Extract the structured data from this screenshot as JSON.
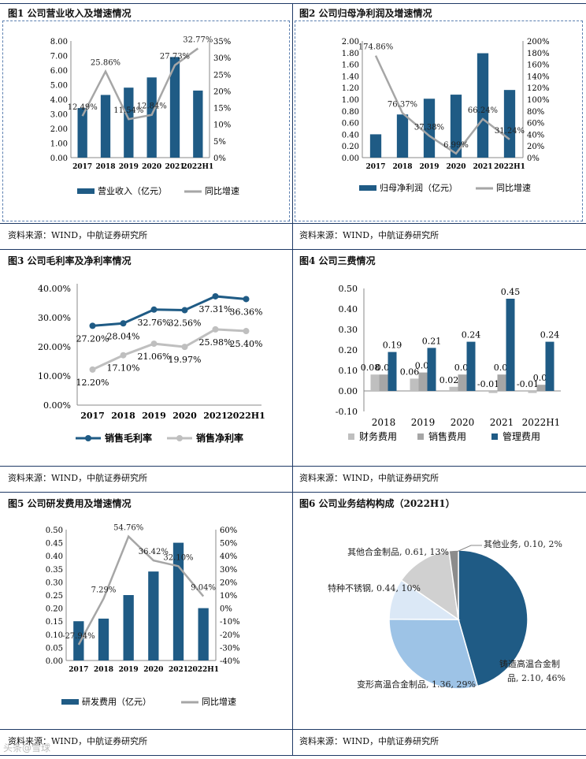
{
  "colors": {
    "primary": "#1f5b85",
    "gray": "#a6a6a6",
    "light_gray": "#bfbfbf",
    "frame": "#1f3a66"
  },
  "source_text": "资料来源：WIND，中航证券研究所",
  "watermark": "头条@雪球",
  "chart_data": [
    {
      "id": "fig1",
      "type": "bar+line",
      "title": "图1  公司营业收入及增速情况",
      "categories": [
        "2017",
        "2018",
        "2019",
        "2020",
        "2021",
        "2022H1"
      ],
      "series": [
        {
          "name": "营业收入（亿元）",
          "type": "bar",
          "axis": "left",
          "values": [
            3.4,
            4.3,
            4.8,
            5.5,
            6.9,
            4.6
          ]
        },
        {
          "name": "同比增速",
          "type": "line",
          "axis": "right",
          "values": [
            12.49,
            25.86,
            11.54,
            12.84,
            27.73,
            32.77
          ]
        }
      ],
      "labels": [
        "12.49%",
        "25.86%",
        "11.54%",
        "12.84%",
        "27.73%",
        "32.77%"
      ],
      "left_ticks": [
        "0.00",
        "1.00",
        "2.00",
        "3.00",
        "4.00",
        "5.00",
        "6.00",
        "7.00",
        "8.00"
      ],
      "right_ticks": [
        "0%",
        "5%",
        "10%",
        "15%",
        "20%",
        "25%",
        "30%",
        "35%"
      ],
      "ylim_left": [
        0,
        8
      ],
      "ylim_right": [
        0,
        35
      ]
    },
    {
      "id": "fig2",
      "type": "bar+line",
      "title": "图2  公司归母净利润及增速情况",
      "categories": [
        "2017",
        "2018",
        "2019",
        "2020",
        "2021",
        "2022H1"
      ],
      "series": [
        {
          "name": "归母净利润（亿元）",
          "type": "bar",
          "axis": "left",
          "values": [
            0.4,
            0.74,
            1.01,
            1.08,
            1.79,
            1.16
          ]
        },
        {
          "name": "同比增速",
          "type": "line",
          "axis": "right",
          "values": [
            174.86,
            76.37,
            37.38,
            6.99,
            66.24,
            31.24
          ]
        }
      ],
      "labels": [
        "174.86%",
        "76.37%",
        "37.38%",
        "6.99%",
        "66.24%",
        "31.24%"
      ],
      "left_ticks": [
        "0.00",
        "0.20",
        "0.40",
        "0.60",
        "0.80",
        "1.00",
        "1.20",
        "1.40",
        "1.60",
        "1.80",
        "2.00"
      ],
      "right_ticks": [
        "0%",
        "20%",
        "40%",
        "60%",
        "80%",
        "100%",
        "120%",
        "140%",
        "160%",
        "180%",
        "200%"
      ],
      "ylim_left": [
        0,
        2
      ],
      "ylim_right": [
        0,
        200
      ]
    },
    {
      "id": "fig3",
      "type": "line",
      "title": "图3  公司毛利率及净利率情况",
      "categories": [
        "2017",
        "2018",
        "2019",
        "2020",
        "2021",
        "2022H1"
      ],
      "series": [
        {
          "name": "销售毛利率",
          "values": [
            27.2,
            28.04,
            32.76,
            32.56,
            37.31,
            36.36
          ]
        },
        {
          "name": "销售净利率",
          "values": [
            12.2,
            17.1,
            21.06,
            19.97,
            25.98,
            25.4
          ]
        }
      ],
      "labels_1": [
        "27.20%",
        "28.04%",
        "32.76%",
        "32.56%",
        "37.31%",
        "36.36%"
      ],
      "labels_2": [
        "12.20%",
        "17.10%",
        "21.06%",
        "19.97%",
        "25.98%",
        "25.40%"
      ],
      "left_ticks": [
        "0.00%",
        "10.00%",
        "20.00%",
        "30.00%",
        "40.00%"
      ],
      "ylim": [
        0,
        40
      ]
    },
    {
      "id": "fig4",
      "type": "bar",
      "title": "图4  公司三费情况",
      "categories": [
        "2018",
        "2019",
        "2020",
        "2021",
        "2022H1"
      ],
      "series": [
        {
          "name": "财务费用",
          "values": [
            0.08,
            0.06,
            0.02,
            -0.01,
            -0.01
          ]
        },
        {
          "name": "销售费用",
          "values": [
            0.08,
            0.09,
            0.08,
            0.08,
            0.03
          ]
        },
        {
          "name": "管理费用",
          "values": [
            0.19,
            0.21,
            0.24,
            0.45,
            0.24
          ]
        }
      ],
      "labels": [
        [
          "0.08",
          "0.06",
          "0.02",
          "-0.01",
          "-0.01"
        ],
        [
          "0.08",
          "0.09",
          "0.08",
          "0.08",
          "0.03"
        ],
        [
          "0.19",
          "0.21",
          "0.24",
          "0.45",
          "0.24"
        ]
      ],
      "left_ticks": [
        "-0.10",
        "0.00",
        "0.10",
        "0.20",
        "0.30",
        "0.40",
        "0.50"
      ],
      "ylim": [
        -0.1,
        0.5
      ]
    },
    {
      "id": "fig5",
      "type": "bar+line",
      "title": "图5  公司研发费用及增速情况",
      "categories": [
        "2017",
        "2018",
        "2019",
        "2020",
        "2021",
        "2022H1"
      ],
      "series": [
        {
          "name": "研发费用（亿元）",
          "type": "bar",
          "axis": "left",
          "values": [
            0.15,
            0.16,
            0.25,
            0.34,
            0.45,
            0.2
          ]
        },
        {
          "name": "同比增速",
          "type": "line",
          "axis": "right",
          "values": [
            -27.94,
            7.29,
            54.76,
            36.42,
            32.1,
            9.04
          ]
        }
      ],
      "labels": [
        "-27.94%",
        "7.29%",
        "54.76%",
        "36.42%",
        "32.10%",
        "9.04%"
      ],
      "left_ticks": [
        "0.00",
        "0.05",
        "0.10",
        "0.15",
        "0.20",
        "0.25",
        "0.30",
        "0.35",
        "0.40",
        "0.45",
        "0.50"
      ],
      "right_ticks": [
        "-40%",
        "-30%",
        "-20%",
        "-10%",
        "0%",
        "10%",
        "20%",
        "30%",
        "40%",
        "50%",
        "60%"
      ],
      "ylim_left": [
        0,
        0.5
      ],
      "ylim_right": [
        -40,
        60
      ]
    },
    {
      "id": "fig6",
      "type": "pie",
      "title": "图6  公司业务结构构成（2022H1）",
      "slices": [
        {
          "name": "铸造高温合金制品",
          "value": 2.1,
          "pct": 46,
          "label_line1": "铸造高温合金制",
          "label_line2": "品, 2.10, 46%"
        },
        {
          "name": "变形高温合金制品",
          "value": 1.36,
          "pct": 29,
          "label_line1": "变形高温合金制品, 1.36, 29%",
          "label_line2": ""
        },
        {
          "name": "特种不锈钢",
          "value": 0.44,
          "pct": 10,
          "label_line1": "特种不锈钢, 0.44, 10%",
          "label_line2": ""
        },
        {
          "name": "其他合金制品",
          "value": 0.61,
          "pct": 13,
          "label_line1": "其他合金制品, 0.61, 13%",
          "label_line2": ""
        },
        {
          "name": "其他业务",
          "value": 0.1,
          "pct": 2,
          "label_line1": "其他业务, 0.10, 2%",
          "label_line2": ""
        }
      ]
    }
  ]
}
